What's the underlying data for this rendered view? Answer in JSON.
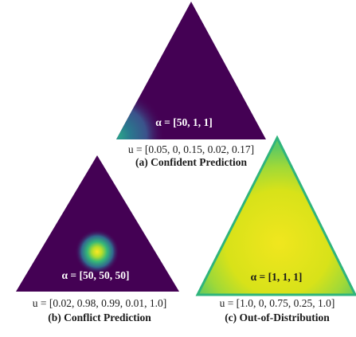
{
  "panels": [
    {
      "alpha_label": "α = [50, 1, 1]",
      "u_label": "u = [0.05, 0, 0.15, 0.02, 0.17]",
      "title": "(a) Confident Prediction",
      "colors": {
        "base": "#440154",
        "hotspot": "#21918c"
      }
    },
    {
      "alpha_label": "α = [50, 50, 50]",
      "u_label": "u = [0.02, 0.98, 0.99, 0.01, 1.0]",
      "title": "(b) Conflict Prediction",
      "colors": {
        "base": "#440154",
        "hotspot": "#fde725"
      }
    },
    {
      "alpha_label": "α = [1, 1, 1]",
      "u_label": "u = [1.0, 0, 0.75, 0.25, 1.0]",
      "title": "(c) Out-of-Distribution",
      "colors": {
        "base": "#e1e51d",
        "edge": "#27ad81"
      }
    }
  ]
}
